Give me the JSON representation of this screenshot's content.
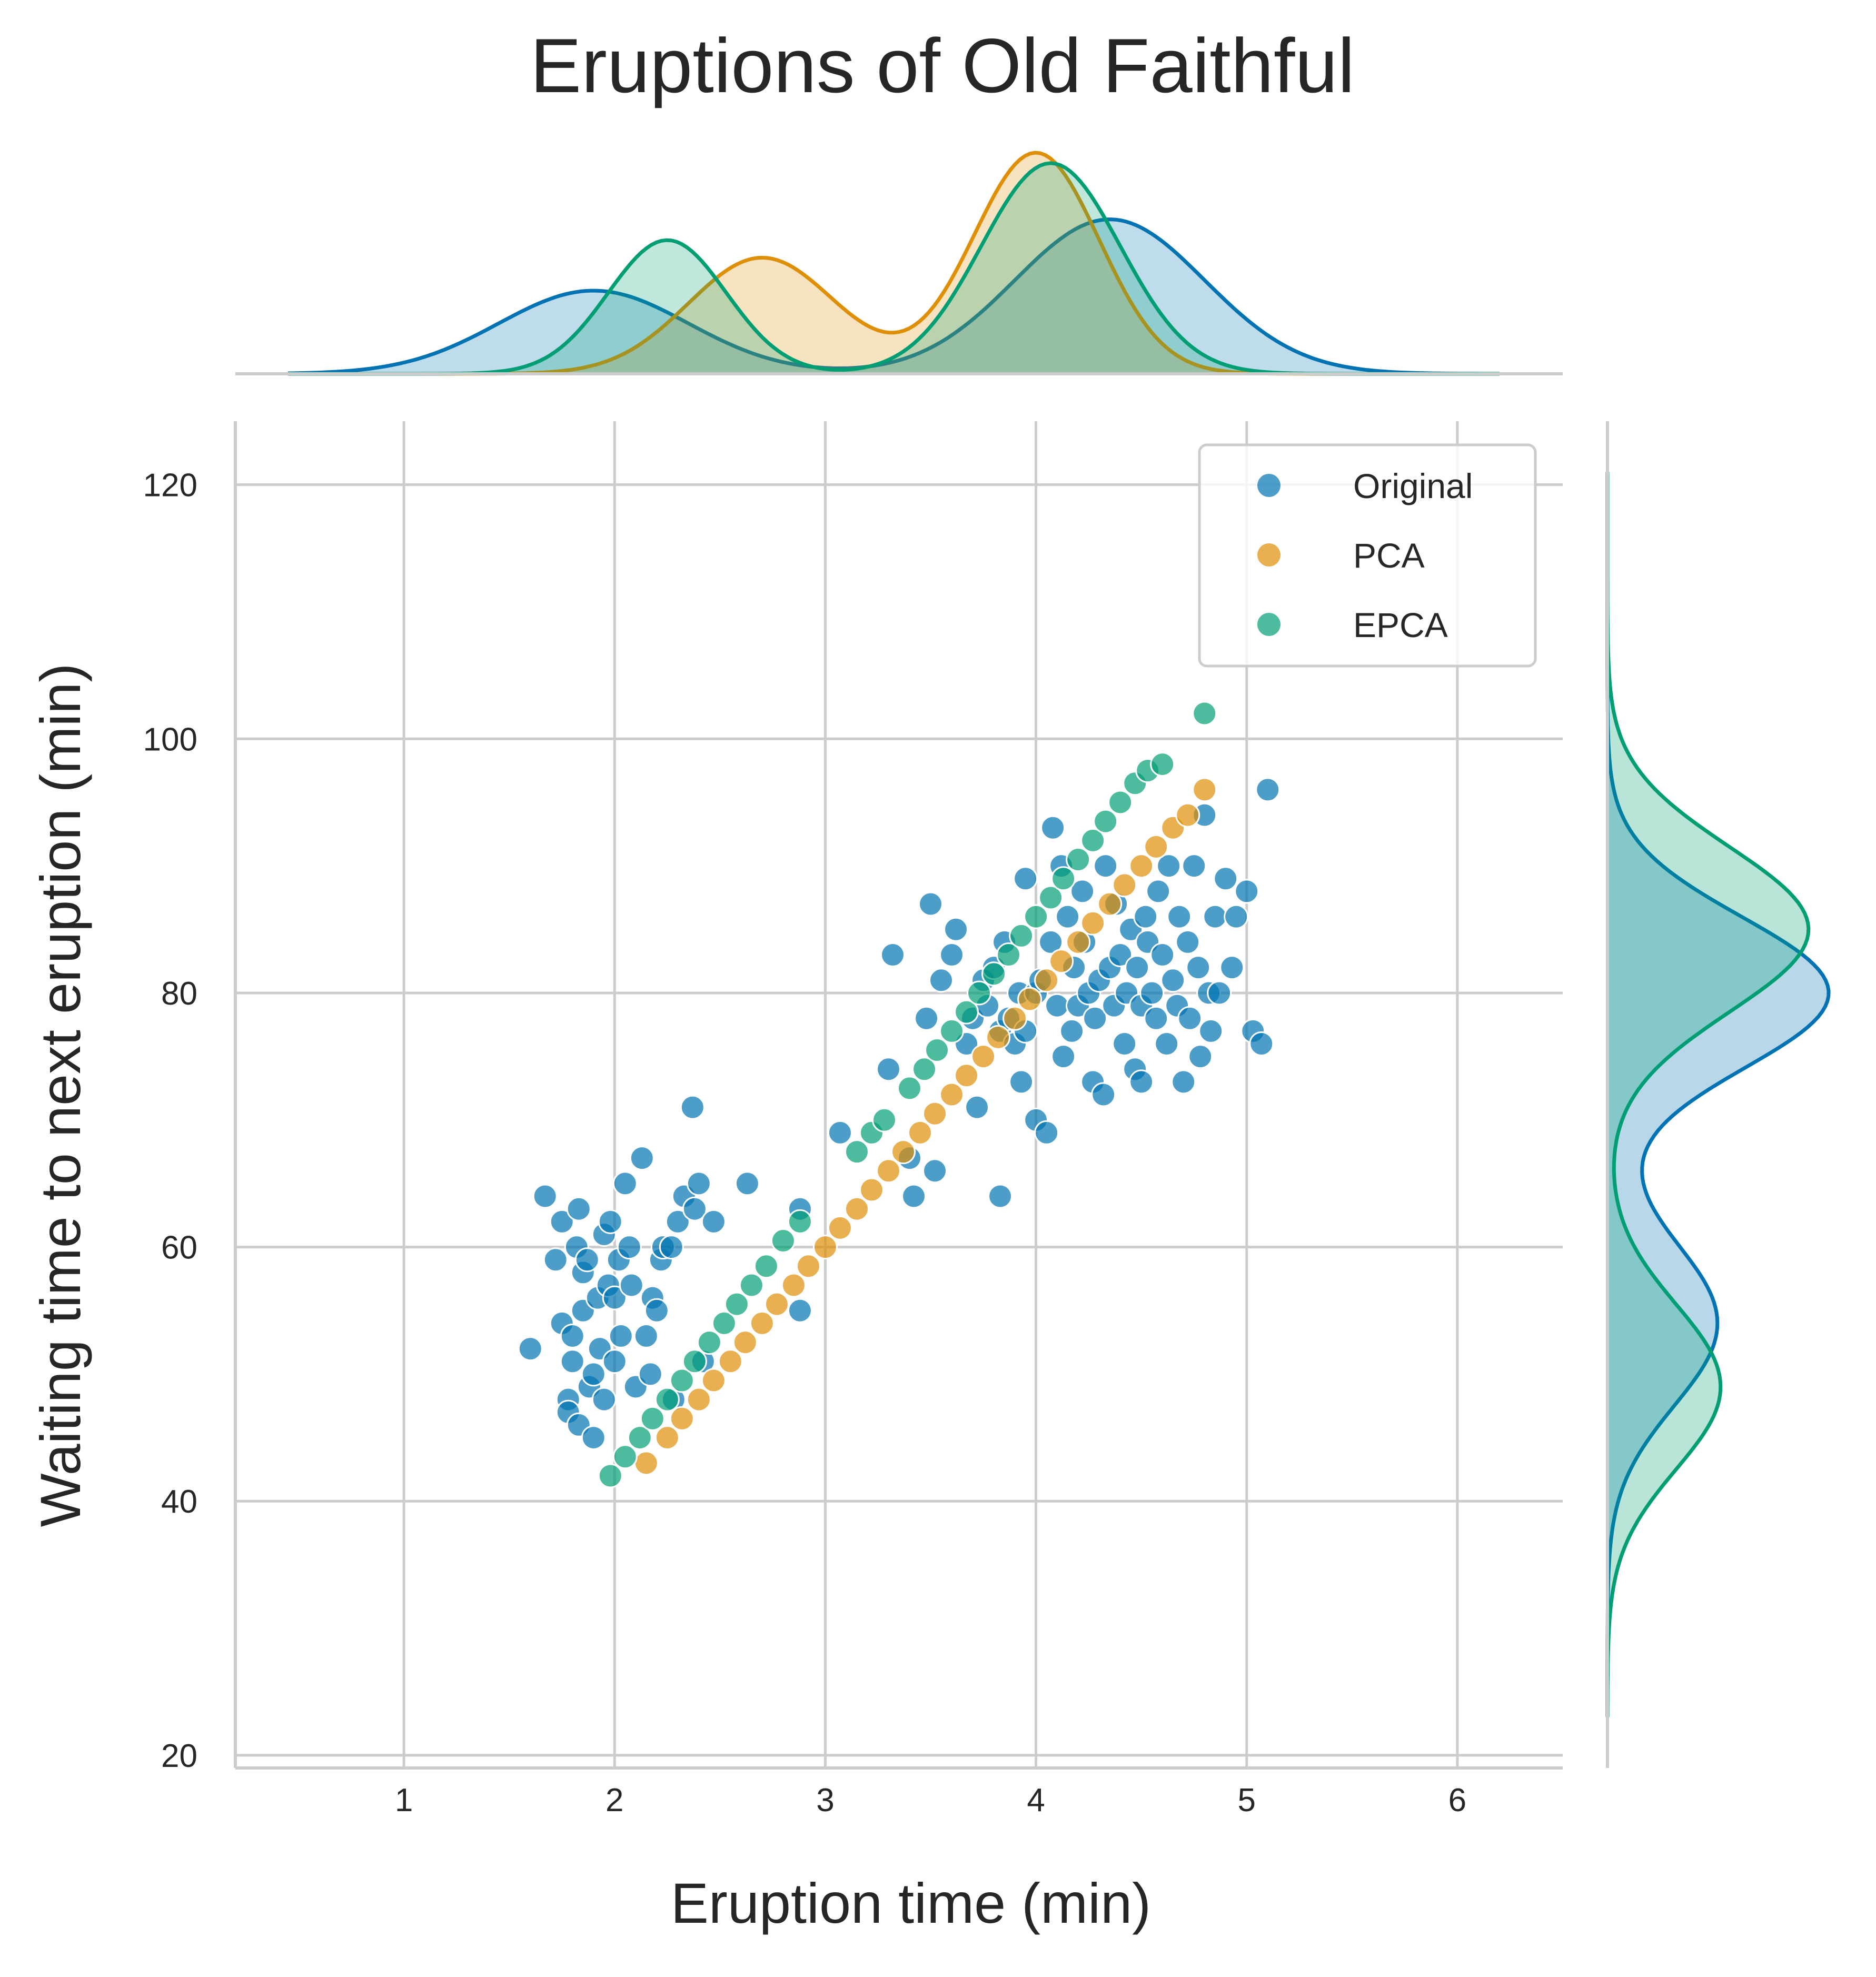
{
  "chart_data": {
    "type": "scatter",
    "title": "Eruptions of Old Faithful",
    "xlabel": "Eruption time (min)",
    "ylabel": "Waiting time to next eruption (min)",
    "xlim": [
      0.2,
      6.5
    ],
    "ylim": [
      19.0,
      125.0
    ],
    "xticks": [
      "1",
      "2",
      "3",
      "4",
      "5",
      "6"
    ],
    "yticks": [
      "20",
      "40",
      "60",
      "80",
      "100",
      "120"
    ],
    "grid": true,
    "legend_position": "top-right",
    "colors": {
      "Original": "#0173b2",
      "PCA": "#de8f05",
      "EPCA": "#029e73"
    },
    "legend": [
      "Original",
      "PCA",
      "EPCA"
    ],
    "series": [
      {
        "name": "Original",
        "color": "#0173b2",
        "points": [
          [
            1.6,
            52
          ],
          [
            1.67,
            64
          ],
          [
            1.72,
            59
          ],
          [
            1.75,
            54
          ],
          [
            1.75,
            62
          ],
          [
            1.78,
            48
          ],
          [
            1.78,
            47
          ],
          [
            1.8,
            51
          ],
          [
            1.8,
            53
          ],
          [
            1.82,
            60
          ],
          [
            1.83,
            63
          ],
          [
            1.83,
            46
          ],
          [
            1.85,
            58
          ],
          [
            1.85,
            55
          ],
          [
            1.87,
            59
          ],
          [
            1.88,
            49
          ],
          [
            1.9,
            45
          ],
          [
            1.9,
            50
          ],
          [
            1.92,
            56
          ],
          [
            1.93,
            52
          ],
          [
            1.95,
            48
          ],
          [
            1.95,
            61
          ],
          [
            1.97,
            57
          ],
          [
            1.98,
            62
          ],
          [
            2.0,
            51
          ],
          [
            2.0,
            56
          ],
          [
            2.02,
            59
          ],
          [
            2.03,
            53
          ],
          [
            2.05,
            65
          ],
          [
            2.07,
            60
          ],
          [
            2.08,
            57
          ],
          [
            2.1,
            49
          ],
          [
            2.13,
            67
          ],
          [
            2.15,
            53
          ],
          [
            2.17,
            50
          ],
          [
            2.18,
            56
          ],
          [
            2.2,
            55
          ],
          [
            2.22,
            59
          ],
          [
            2.23,
            60
          ],
          [
            2.27,
            60
          ],
          [
            2.28,
            48
          ],
          [
            2.3,
            62
          ],
          [
            2.33,
            64
          ],
          [
            2.37,
            71
          ],
          [
            2.38,
            63
          ],
          [
            2.4,
            65
          ],
          [
            2.42,
            51
          ],
          [
            2.47,
            62
          ],
          [
            2.63,
            65
          ],
          [
            2.88,
            63
          ],
          [
            2.88,
            55
          ],
          [
            3.07,
            69
          ],
          [
            3.3,
            74
          ],
          [
            3.32,
            83
          ],
          [
            3.4,
            67
          ],
          [
            3.42,
            64
          ],
          [
            3.48,
            78
          ],
          [
            3.5,
            87
          ],
          [
            3.52,
            66
          ],
          [
            3.55,
            81
          ],
          [
            3.6,
            83
          ],
          [
            3.62,
            85
          ],
          [
            3.67,
            76
          ],
          [
            3.7,
            78
          ],
          [
            3.72,
            71
          ],
          [
            3.75,
            81
          ],
          [
            3.77,
            79
          ],
          [
            3.8,
            82
          ],
          [
            3.83,
            77
          ],
          [
            3.83,
            64
          ],
          [
            3.85,
            84
          ],
          [
            3.87,
            78
          ],
          [
            3.9,
            76
          ],
          [
            3.92,
            80
          ],
          [
            3.93,
            73
          ],
          [
            3.95,
            89
          ],
          [
            3.95,
            77
          ],
          [
            4.0,
            80
          ],
          [
            4.0,
            70
          ],
          [
            4.02,
            81
          ],
          [
            4.05,
            69
          ],
          [
            4.07,
            84
          ],
          [
            4.08,
            93
          ],
          [
            4.1,
            79
          ],
          [
            4.12,
            90
          ],
          [
            4.13,
            75
          ],
          [
            4.15,
            86
          ],
          [
            4.17,
            77
          ],
          [
            4.18,
            82
          ],
          [
            4.2,
            79
          ],
          [
            4.22,
            88
          ],
          [
            4.23,
            84
          ],
          [
            4.25,
            80
          ],
          [
            4.27,
            73
          ],
          [
            4.28,
            78
          ],
          [
            4.3,
            81
          ],
          [
            4.32,
            72
          ],
          [
            4.33,
            90
          ],
          [
            4.35,
            82
          ],
          [
            4.37,
            79
          ],
          [
            4.38,
            87
          ],
          [
            4.4,
            83
          ],
          [
            4.42,
            76
          ],
          [
            4.43,
            80
          ],
          [
            4.45,
            85
          ],
          [
            4.47,
            74
          ],
          [
            4.48,
            82
          ],
          [
            4.5,
            79
          ],
          [
            4.5,
            73
          ],
          [
            4.52,
            86
          ],
          [
            4.53,
            84
          ],
          [
            4.55,
            80
          ],
          [
            4.57,
            78
          ],
          [
            4.58,
            88
          ],
          [
            4.6,
            83
          ],
          [
            4.62,
            76
          ],
          [
            4.63,
            90
          ],
          [
            4.65,
            81
          ],
          [
            4.67,
            79
          ],
          [
            4.68,
            86
          ],
          [
            4.7,
            73
          ],
          [
            4.72,
            84
          ],
          [
            4.73,
            78
          ],
          [
            4.75,
            90
          ],
          [
            4.77,
            82
          ],
          [
            4.78,
            75
          ],
          [
            4.8,
            94
          ],
          [
            4.82,
            80
          ],
          [
            4.83,
            77
          ],
          [
            4.85,
            86
          ],
          [
            4.87,
            80
          ],
          [
            4.9,
            89
          ],
          [
            4.93,
            82
          ],
          [
            4.95,
            86
          ],
          [
            5.0,
            88
          ],
          [
            5.03,
            77
          ],
          [
            5.07,
            76
          ],
          [
            5.1,
            96
          ]
        ]
      },
      {
        "name": "PCA",
        "color": "#de8f05",
        "points": [
          [
            2.15,
            43
          ],
          [
            2.25,
            45
          ],
          [
            2.32,
            46.5
          ],
          [
            2.4,
            48
          ],
          [
            2.47,
            49.5
          ],
          [
            2.55,
            51
          ],
          [
            2.62,
            52.5
          ],
          [
            2.7,
            54
          ],
          [
            2.77,
            55.5
          ],
          [
            2.85,
            57
          ],
          [
            2.92,
            58.5
          ],
          [
            3.0,
            60
          ],
          [
            3.07,
            61.5
          ],
          [
            3.15,
            63
          ],
          [
            3.22,
            64.5
          ],
          [
            3.3,
            66
          ],
          [
            3.37,
            67.5
          ],
          [
            3.45,
            69
          ],
          [
            3.52,
            70.5
          ],
          [
            3.6,
            72
          ],
          [
            3.67,
            73.5
          ],
          [
            3.75,
            75
          ],
          [
            3.82,
            76.5
          ],
          [
            3.9,
            78
          ],
          [
            3.97,
            79.5
          ],
          [
            4.05,
            81
          ],
          [
            4.12,
            82.5
          ],
          [
            4.2,
            84
          ],
          [
            4.27,
            85.5
          ],
          [
            4.35,
            87
          ],
          [
            4.42,
            88.5
          ],
          [
            4.5,
            90
          ],
          [
            4.57,
            91.5
          ],
          [
            4.65,
            93
          ],
          [
            4.72,
            94
          ],
          [
            4.8,
            96
          ]
        ]
      },
      {
        "name": "EPCA",
        "color": "#029e73",
        "points": [
          [
            1.98,
            42
          ],
          [
            2.05,
            43.5
          ],
          [
            2.12,
            45
          ],
          [
            2.18,
            46.5
          ],
          [
            2.25,
            48
          ],
          [
            2.32,
            49.5
          ],
          [
            2.38,
            51
          ],
          [
            2.45,
            52.5
          ],
          [
            2.52,
            54
          ],
          [
            2.58,
            55.5
          ],
          [
            2.65,
            57
          ],
          [
            2.72,
            58.5
          ],
          [
            2.8,
            60.5
          ],
          [
            2.88,
            62
          ],
          [
            3.15,
            67.5
          ],
          [
            3.22,
            69
          ],
          [
            3.28,
            70
          ],
          [
            3.4,
            72.5
          ],
          [
            3.47,
            74
          ],
          [
            3.53,
            75.5
          ],
          [
            3.6,
            77
          ],
          [
            3.67,
            78.5
          ],
          [
            3.73,
            80
          ],
          [
            3.8,
            81.5
          ],
          [
            3.87,
            83
          ],
          [
            3.93,
            84.5
          ],
          [
            4.0,
            86
          ],
          [
            4.07,
            87.5
          ],
          [
            4.13,
            89
          ],
          [
            4.2,
            90.5
          ],
          [
            4.27,
            92
          ],
          [
            4.33,
            93.5
          ],
          [
            4.4,
            95
          ],
          [
            4.47,
            96.5
          ],
          [
            4.53,
            97.5
          ],
          [
            4.6,
            98
          ],
          [
            4.8,
            102
          ]
        ]
      }
    ],
    "marginal_x_kde": [
      {
        "name": "Original",
        "components": [
          [
            0.35,
            1.9,
            0.45
          ],
          [
            0.65,
            4.35,
            0.45
          ]
        ]
      },
      {
        "name": "PCA",
        "components": [
          [
            0.38,
            2.7,
            0.35
          ],
          [
            0.62,
            4.0,
            0.3
          ]
        ]
      },
      {
        "name": "EPCA",
        "components": [
          [
            0.35,
            2.25,
            0.28
          ],
          [
            0.65,
            4.07,
            0.33
          ]
        ]
      }
    ],
    "marginal_y_kde": [
      {
        "name": "Original",
        "components": [
          [
            0.35,
            54,
            6.5
          ],
          [
            0.65,
            80,
            6.0
          ]
        ]
      },
      {
        "name": "EPCA",
        "components": [
          [
            0.36,
            49,
            6.5
          ],
          [
            0.64,
            85,
            6.5
          ]
        ]
      }
    ]
  }
}
